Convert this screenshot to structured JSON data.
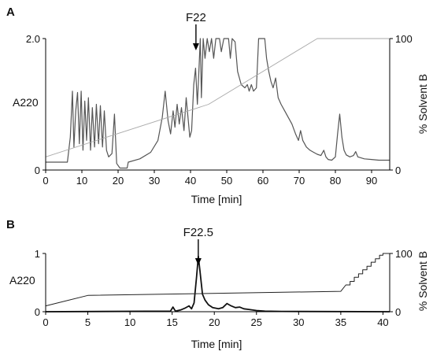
{
  "chart_data": [
    {
      "panel": "A",
      "type": "line",
      "annotation": "F22",
      "annotation_x": 41.5,
      "xlabel": "Time [min]",
      "ylabel_left": "A220",
      "ylabel_right": "% Solvent  B",
      "xlim": [
        0,
        95
      ],
      "ylim_left": [
        0,
        2.0
      ],
      "ylim_right": [
        0,
        100
      ],
      "xticks": [
        0,
        10,
        20,
        30,
        40,
        50,
        60,
        70,
        80,
        90
      ],
      "yticks_left": [
        {
          "v": 0,
          "label": "0"
        },
        {
          "v": 2.0,
          "label": "2.0"
        }
      ],
      "yticks_right": [
        {
          "v": 0,
          "label": "0"
        },
        {
          "v": 100,
          "label": "100"
        }
      ],
      "series": [
        {
          "axis": "left",
          "color": "#555555",
          "width": 1.2,
          "points": [
            [
              0,
              0.12
            ],
            [
              6,
              0.12
            ],
            [
              6.8,
              0.5
            ],
            [
              7.4,
              1.2
            ],
            [
              7.8,
              0.35
            ],
            [
              8.3,
              0.9
            ],
            [
              8.8,
              1.18
            ],
            [
              9.3,
              0.4
            ],
            [
              9.8,
              1.2
            ],
            [
              10.3,
              0.3
            ],
            [
              10.8,
              1.05
            ],
            [
              11.3,
              0.45
            ],
            [
              11.8,
              1.1
            ],
            [
              12.4,
              0.3
            ],
            [
              12.9,
              0.95
            ],
            [
              13.5,
              0.35
            ],
            [
              14.0,
              1.0
            ],
            [
              14.6,
              0.4
            ],
            [
              15.1,
              0.98
            ],
            [
              15.7,
              0.35
            ],
            [
              16.2,
              0.9
            ],
            [
              16.8,
              0.3
            ],
            [
              17.4,
              0.2
            ],
            [
              18.3,
              0.25
            ],
            [
              19.0,
              0.85
            ],
            [
              19.6,
              0.1
            ],
            [
              20.5,
              0.03
            ],
            [
              22.5,
              0.03
            ],
            [
              22.8,
              0.12
            ],
            [
              26,
              0.17
            ],
            [
              29,
              0.27
            ],
            [
              31,
              0.45
            ],
            [
              32.2,
              0.8
            ],
            [
              33,
              1.2
            ],
            [
              33.8,
              0.75
            ],
            [
              34.5,
              0.55
            ],
            [
              35.2,
              0.9
            ],
            [
              35.7,
              0.65
            ],
            [
              36.3,
              1.0
            ],
            [
              36.9,
              0.7
            ],
            [
              37.5,
              0.95
            ],
            [
              38.2,
              0.6
            ],
            [
              38.8,
              1.1
            ],
            [
              39.8,
              0.5
            ],
            [
              40.3,
              0.6
            ],
            [
              40.9,
              1.3
            ],
            [
              41.4,
              1.55
            ],
            [
              41.9,
              1.0
            ],
            [
              42.3,
              1.5
            ],
            [
              42.7,
              2.0
            ],
            [
              43.0,
              1.1
            ],
            [
              43.5,
              2.0
            ],
            [
              44,
              1.7
            ],
            [
              44.6,
              2.0
            ],
            [
              45.2,
              1.8
            ],
            [
              45.8,
              2.0
            ],
            [
              46.4,
              1.7
            ],
            [
              47,
              2.0
            ],
            [
              48,
              2.0
            ],
            [
              48.5,
              1.8
            ],
            [
              49.2,
              2.0
            ],
            [
              50.5,
              2.0
            ],
            [
              51,
              1.7
            ],
            [
              51.5,
              2.0
            ],
            [
              52.3,
              1.95
            ],
            [
              53,
              1.5
            ],
            [
              54,
              1.3
            ],
            [
              55,
              1.25
            ],
            [
              55.7,
              1.3
            ],
            [
              56.2,
              1.2
            ],
            [
              56.8,
              1.3
            ],
            [
              57.4,
              1.2
            ],
            [
              58.2,
              1.25
            ],
            [
              58.8,
              2.0
            ],
            [
              60.5,
              2.0
            ],
            [
              61,
              1.7
            ],
            [
              61.6,
              1.5
            ],
            [
              62.2,
              1.35
            ],
            [
              62.8,
              1.25
            ],
            [
              63.5,
              1.4
            ],
            [
              64.2,
              1.1
            ],
            [
              65,
              1.0
            ],
            [
              66,
              0.9
            ],
            [
              67,
              0.8
            ],
            [
              68,
              0.7
            ],
            [
              69,
              0.55
            ],
            [
              69.8,
              0.45
            ],
            [
              70.4,
              0.6
            ],
            [
              71,
              0.45
            ],
            [
              72,
              0.35
            ],
            [
              73,
              0.3
            ],
            [
              74,
              0.27
            ],
            [
              75,
              0.24
            ],
            [
              76,
              0.22
            ],
            [
              76.8,
              0.3
            ],
            [
              77.4,
              0.2
            ],
            [
              78,
              0.16
            ],
            [
              79,
              0.15
            ],
            [
              80,
              0.2
            ],
            [
              80.6,
              0.55
            ],
            [
              81.2,
              0.85
            ],
            [
              81.8,
              0.5
            ],
            [
              82.4,
              0.3
            ],
            [
              83,
              0.23
            ],
            [
              84,
              0.2
            ],
            [
              85,
              0.22
            ],
            [
              85.6,
              0.28
            ],
            [
              86.2,
              0.2
            ],
            [
              88,
              0.17
            ],
            [
              90,
              0.16
            ],
            [
              92,
              0.15
            ],
            [
              95,
              0.15
            ]
          ]
        },
        {
          "axis": "right",
          "color": "#aaaaaa",
          "width": 0.9,
          "points": [
            [
              0,
              10
            ],
            [
              45,
              50
            ],
            [
              75,
              100
            ],
            [
              95,
              100
            ]
          ]
        }
      ]
    },
    {
      "panel": "B",
      "type": "line",
      "annotation": "F22.5",
      "annotation_x": 18.1,
      "xlabel": "Time [min]",
      "ylabel_left": "A220",
      "ylabel_right": "% Solvent  B",
      "xlim": [
        0,
        40.8
      ],
      "ylim_left": [
        0,
        1
      ],
      "ylim_right": [
        0,
        100
      ],
      "xticks": [
        0,
        5,
        10,
        15,
        20,
        25,
        30,
        35,
        40
      ],
      "yticks_left": [
        {
          "v": 0,
          "label": "0"
        },
        {
          "v": 1,
          "label": "1"
        }
      ],
      "yticks_right": [
        {
          "v": 0,
          "label": "0"
        },
        {
          "v": 100,
          "label": "100"
        }
      ],
      "series": [
        {
          "axis": "left",
          "color": "#111111",
          "width": 1.8,
          "points": [
            [
              0,
              0
            ],
            [
              14.8,
              0.01
            ],
            [
              15.1,
              0.08
            ],
            [
              15.4,
              0.01
            ],
            [
              16,
              0.03
            ],
            [
              16.5,
              0.06
            ],
            [
              17,
              0.1
            ],
            [
              17.3,
              0.05
            ],
            [
              17.6,
              0.15
            ],
            [
              17.9,
              0.6
            ],
            [
              18.1,
              0.95
            ],
            [
              18.3,
              0.7
            ],
            [
              18.6,
              0.3
            ],
            [
              18.9,
              0.2
            ],
            [
              19.3,
              0.12
            ],
            [
              19.8,
              0.07
            ],
            [
              20.5,
              0.05
            ],
            [
              21,
              0.07
            ],
            [
              21.5,
              0.14
            ],
            [
              22,
              0.1
            ],
            [
              22.5,
              0.07
            ],
            [
              23,
              0.08
            ],
            [
              23.5,
              0.05
            ],
            [
              24,
              0.04
            ],
            [
              25,
              0.02
            ],
            [
              26,
              0.01
            ],
            [
              28,
              0.005
            ],
            [
              40.8,
              0
            ]
          ]
        },
        {
          "axis": "right",
          "color": "#222222",
          "width": 1.0,
          "points": [
            [
              0,
              10
            ],
            [
              5,
              28
            ],
            [
              35,
              35
            ],
            [
              35.6,
              46
            ],
            [
              36.1,
              46
            ],
            [
              36.1,
              52
            ],
            [
              36.6,
              52
            ],
            [
              36.6,
              59
            ],
            [
              37.1,
              59
            ],
            [
              37.1,
              65
            ],
            [
              37.6,
              65
            ],
            [
              37.6,
              72
            ],
            [
              38.1,
              72
            ],
            [
              38.1,
              78
            ],
            [
              38.6,
              78
            ],
            [
              38.6,
              85
            ],
            [
              39.1,
              85
            ],
            [
              39.1,
              91
            ],
            [
              39.6,
              91
            ],
            [
              39.6,
              97
            ],
            [
              40.0,
              97
            ],
            [
              40.0,
              100
            ],
            [
              40.8,
              100
            ]
          ]
        }
      ]
    }
  ]
}
